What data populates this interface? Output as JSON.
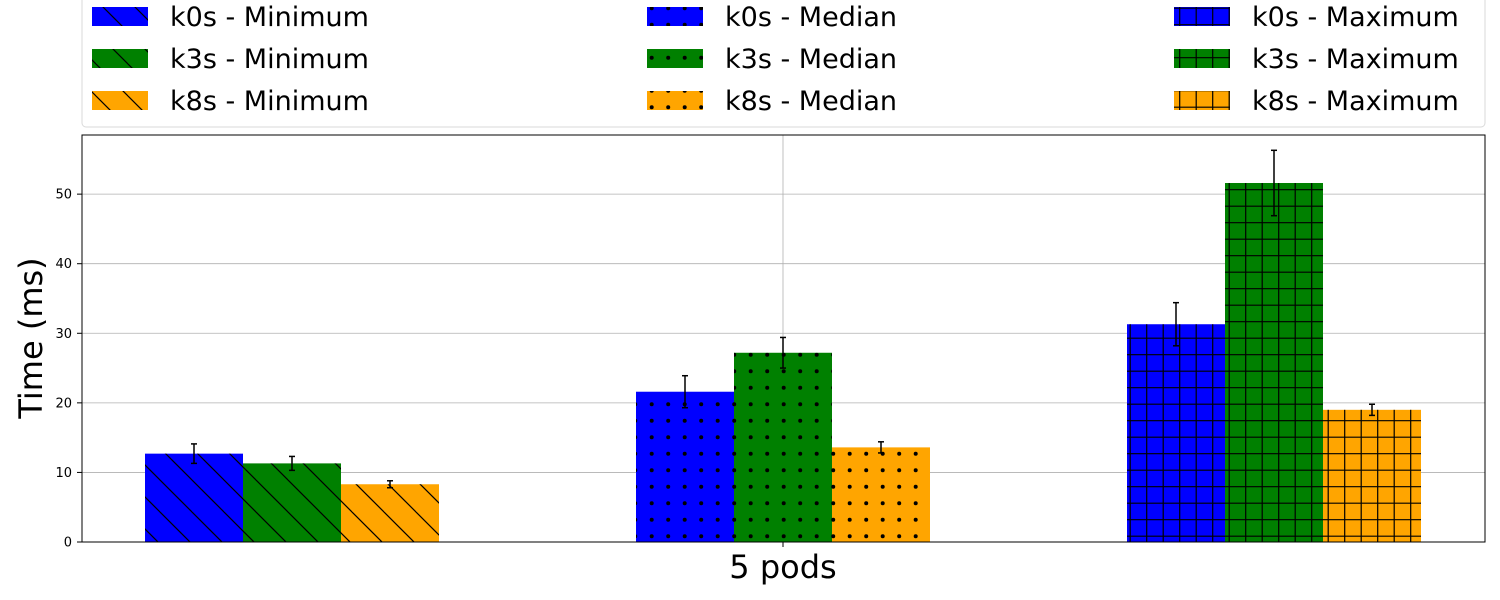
{
  "chart_data": {
    "type": "bar",
    "title": "",
    "xlabel": "",
    "ylabel": "Time (ms)",
    "categories": [
      "5 pods"
    ],
    "ylim": [
      0,
      58.5
    ],
    "yticks": [
      0,
      10,
      20,
      30,
      40,
      50
    ],
    "grid": true,
    "legend_position": "top",
    "legend_columns": 3,
    "groups": [
      {
        "name": "Minimum",
        "pattern": "diagonal",
        "series": [
          {
            "name": "k0s - Minimum",
            "value": 12.7,
            "error": 1.4,
            "color": "#0000ff"
          },
          {
            "name": "k3s - Minimum",
            "value": 11.3,
            "error": 1.0,
            "color": "#008000"
          },
          {
            "name": "k8s - Minimum",
            "value": 8.3,
            "error": 0.5,
            "color": "#ffa500"
          }
        ]
      },
      {
        "name": "Median",
        "pattern": "dots",
        "series": [
          {
            "name": "k0s - Median",
            "value": 21.6,
            "error": 2.3,
            "color": "#0000ff"
          },
          {
            "name": "k3s - Median",
            "value": 27.2,
            "error": 2.2,
            "color": "#008000"
          },
          {
            "name": "k8s - Median",
            "value": 13.6,
            "error": 0.8,
            "color": "#ffa500"
          }
        ]
      },
      {
        "name": "Maximum",
        "pattern": "grid",
        "series": [
          {
            "name": "k0s - Maximum",
            "value": 31.3,
            "error": 3.1,
            "color": "#0000ff"
          },
          {
            "name": "k3s - Maximum",
            "value": 51.6,
            "error": 4.7,
            "color": "#008000"
          },
          {
            "name": "k8s - Maximum",
            "value": 19.0,
            "error": 0.8,
            "color": "#ffa500"
          }
        ]
      }
    ]
  }
}
